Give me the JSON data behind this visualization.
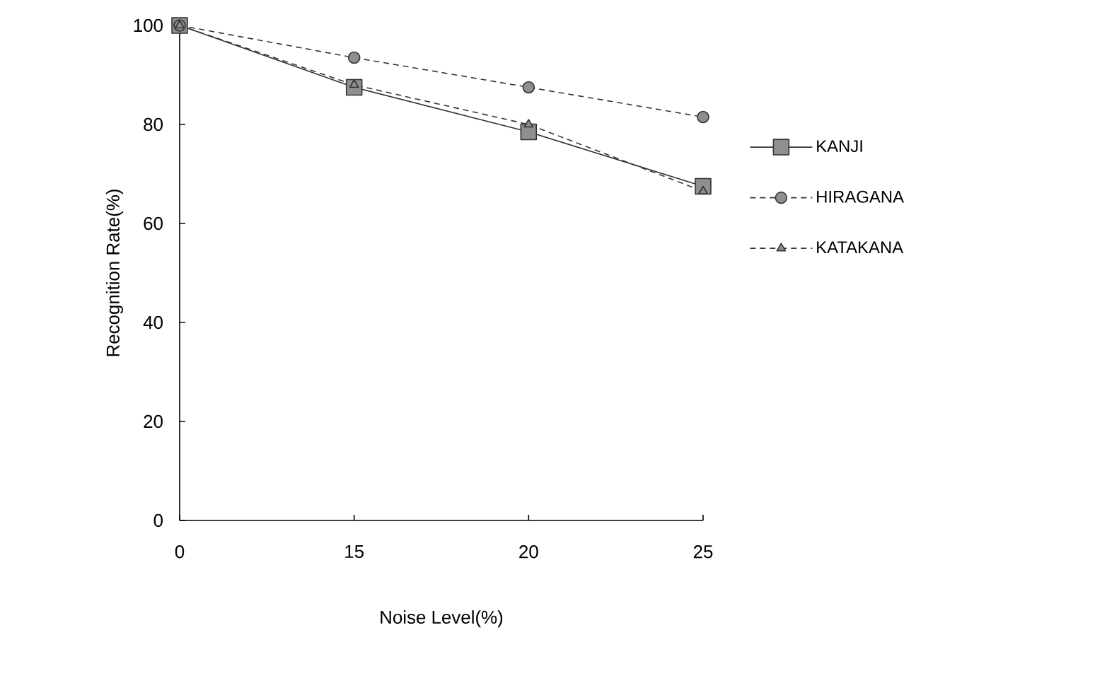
{
  "chart_data": {
    "type": "line",
    "xlabel": "Noise Level(%)",
    "ylabel": "Recognition Rate(%)",
    "categories": [
      "0",
      "15",
      "20",
      "25"
    ],
    "ylim": [
      0,
      100
    ],
    "yticks": [
      0,
      20,
      40,
      60,
      80,
      100
    ],
    "legend": "right",
    "grid": false,
    "series": [
      {
        "name": "KANJI",
        "color": "#333333",
        "values": [
          100,
          87.5,
          78.5,
          67.5
        ],
        "line_style": "solid",
        "marker": "square"
      },
      {
        "name": "HIRAGANA",
        "color": "#333333",
        "values": [
          100,
          93.5,
          87.5,
          81.5
        ],
        "line_style": "dashed",
        "marker": "circle"
      },
      {
        "name": "KATAKANA",
        "color": "#333333",
        "values": [
          100,
          88,
          80,
          66.5
        ],
        "line_style": "dashed",
        "marker": "triangle"
      }
    ]
  }
}
